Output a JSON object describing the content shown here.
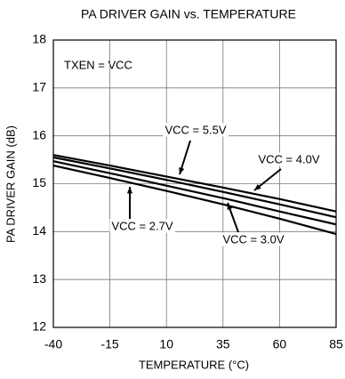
{
  "chart_data": {
    "type": "line",
    "title": "PA DRIVER GAIN vs. TEMPERATURE",
    "x_label": "TEMPERATURE (°C)",
    "y_label": "PA DRIVER GAIN (dB)",
    "annotation": "TXEN = VCC",
    "x": [
      -40,
      -15,
      10,
      35,
      60,
      85
    ],
    "series": [
      {
        "name": "VCC = 5.5V",
        "color": "#000000",
        "values": [
          15.6,
          15.38,
          15.15,
          14.92,
          14.68,
          14.42
        ]
      },
      {
        "name": "VCC = 4.0V",
        "color": "#000000",
        "values": [
          15.55,
          15.32,
          15.08,
          14.83,
          14.57,
          14.3
        ]
      },
      {
        "name": "VCC = 3.0V",
        "color": "#000000",
        "values": [
          15.47,
          15.22,
          14.96,
          14.7,
          14.42,
          14.15
        ]
      },
      {
        "name": "VCC = 2.7V",
        "color": "#000000",
        "values": [
          15.38,
          15.12,
          14.85,
          14.57,
          14.27,
          13.95
        ]
      }
    ],
    "xlim": [
      -40,
      85
    ],
    "xticks": [
      -40,
      -15,
      10,
      35,
      60,
      85
    ],
    "ylim": [
      12,
      18
    ],
    "yticks": [
      12,
      13,
      14,
      15,
      16,
      17,
      18
    ],
    "grid": true
  }
}
